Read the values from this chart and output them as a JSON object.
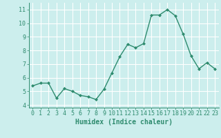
{
  "x": [
    0,
    1,
    2,
    3,
    4,
    5,
    6,
    7,
    8,
    9,
    10,
    11,
    12,
    13,
    14,
    15,
    16,
    17,
    18,
    19,
    20,
    21,
    22,
    23
  ],
  "y": [
    5.4,
    5.6,
    5.6,
    4.5,
    5.2,
    5.0,
    4.7,
    4.6,
    4.4,
    5.15,
    6.35,
    7.55,
    8.45,
    8.2,
    8.5,
    10.6,
    10.6,
    11.0,
    10.55,
    9.2,
    7.6,
    6.65,
    7.1,
    6.65
  ],
  "xlabel": "Humidex (Indice chaleur)",
  "ylabel": "",
  "xlim": [
    -0.5,
    23.5
  ],
  "ylim": [
    3.8,
    11.5
  ],
  "yticks": [
    4,
    5,
    6,
    7,
    8,
    9,
    10,
    11
  ],
  "xticks": [
    0,
    1,
    2,
    3,
    4,
    5,
    6,
    7,
    8,
    9,
    10,
    11,
    12,
    13,
    14,
    15,
    16,
    17,
    18,
    19,
    20,
    21,
    22,
    23
  ],
  "line_color": "#2e8b6e",
  "marker": "D",
  "marker_size": 2.0,
  "bg_color": "#cceeed",
  "grid_color": "#ffffff",
  "tick_label_color": "#2e8b6e",
  "xlabel_color": "#2e8b6e",
  "xlabel_fontsize": 7,
  "tick_fontsize": 6,
  "linewidth": 1.0
}
